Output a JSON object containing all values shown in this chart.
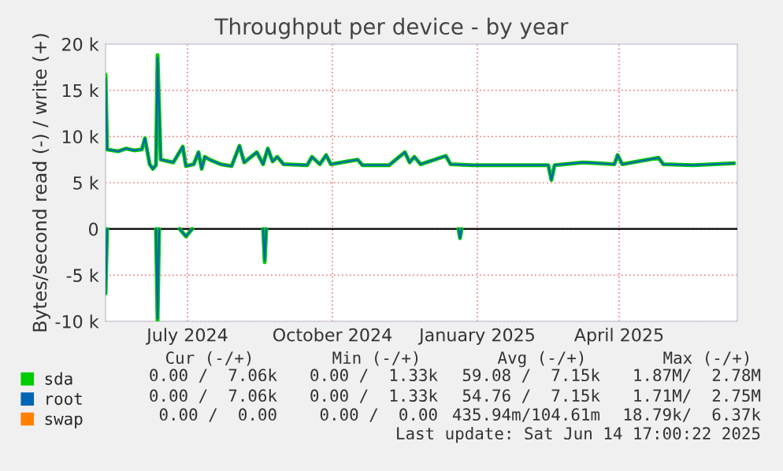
{
  "chart_data": {
    "type": "line",
    "title": "Throughput per device - by year",
    "ylabel": "Bytes/second read (-) / write (+)",
    "xlim": [
      "2024-05-10",
      "2025-06-15"
    ],
    "xticks": [
      {
        "value": "2024-07-01",
        "label": "July 2024"
      },
      {
        "value": "2024-10-01",
        "label": "October 2024"
      },
      {
        "value": "2025-01-01",
        "label": "January 2025"
      },
      {
        "value": "2025-04-01",
        "label": "April 2025"
      }
    ],
    "ylim": [
      -10000,
      20000
    ],
    "yticks": [
      {
        "value": -10000,
        "label": "-10 k"
      },
      {
        "value": -5000,
        "label": "-5 k"
      },
      {
        "value": 0,
        "label": "0"
      },
      {
        "value": 5000,
        "label": "5 k"
      },
      {
        "value": 10000,
        "label": "10 k"
      },
      {
        "value": 15000,
        "label": "15 k"
      },
      {
        "value": 20000,
        "label": "20 k"
      }
    ],
    "grid": true,
    "legend": "bottom left",
    "ref_lines": [
      {
        "axis": "y",
        "value": 0,
        "color": "#000000"
      }
    ],
    "series": [
      {
        "name": "sda",
        "color": "#00cc00",
        "x": [
          "2024-05-10",
          "2024-05-11",
          "2024-05-18",
          "2024-05-23",
          "2024-05-28",
          "2024-06-02",
          "2024-06-04",
          "2024-06-07",
          "2024-06-09",
          "2024-06-11",
          "2024-06-12",
          "2024-06-14",
          "2024-06-22",
          "2024-06-28",
          "2024-06-30",
          "2024-07-05",
          "2024-07-08",
          "2024-07-10",
          "2024-07-12",
          "2024-07-15",
          "2024-07-22",
          "2024-07-29",
          "2024-08-03",
          "2024-08-06",
          "2024-08-14",
          "2024-08-18",
          "2024-08-21",
          "2024-08-24",
          "2024-08-27",
          "2024-08-31",
          "2024-09-15",
          "2024-09-18",
          "2024-09-23",
          "2024-09-27",
          "2024-09-30",
          "2024-10-17",
          "2024-10-20",
          "2024-11-06",
          "2024-11-16",
          "2024-11-19",
          "2024-11-22",
          "2024-11-26",
          "2024-12-12",
          "2024-12-15",
          "2024-12-29",
          "2025-02-15",
          "2025-02-17",
          "2025-02-19",
          "2025-03-09",
          "2025-03-29",
          "2025-03-31",
          "2025-04-03",
          "2025-04-26",
          "2025-04-29",
          "2025-05-18",
          "2025-06-13"
        ],
        "values": [
          16700,
          8600,
          8400,
          8700,
          8500,
          8600,
          9800,
          7000,
          6500,
          6900,
          18800,
          7500,
          7200,
          8900,
          6800,
          7000,
          8300,
          6500,
          7800,
          7500,
          7000,
          6800,
          9000,
          7200,
          8300,
          7000,
          8700,
          7300,
          7800,
          7000,
          6900,
          7800,
          7000,
          8000,
          7000,
          7500,
          6900,
          6900,
          8300,
          7200,
          7800,
          7000,
          7900,
          7000,
          6900,
          6900,
          5300,
          6900,
          7200,
          7000,
          8000,
          7000,
          7700,
          7000,
          6900,
          7100
        ]
      },
      {
        "color": "#00cc00",
        "x": [
          "2024-05-10",
          "2024-05-11",
          "2024-05-20",
          "2024-06-11",
          "2024-06-12",
          "2024-06-13",
          "2024-06-20",
          "2024-06-26",
          "2024-06-30",
          "2024-07-04",
          "2024-07-20",
          "2024-08-18",
          "2024-08-19",
          "2024-08-20",
          "2024-09-20",
          "2024-12-20",
          "2024-12-21",
          "2024-12-22"
        ],
        "values": [
          -7000,
          0,
          null,
          0,
          -10000,
          0,
          null,
          0,
          -800,
          0,
          null,
          0,
          -3600,
          0,
          null,
          0,
          -1000,
          0
        ]
      },
      {
        "name": "root",
        "color": "#0066b3",
        "x": [
          "2024-05-10",
          "2024-05-11",
          "2024-05-18",
          "2024-05-23",
          "2024-05-28",
          "2024-06-02",
          "2024-06-04",
          "2024-06-07",
          "2024-06-09",
          "2024-06-11",
          "2024-06-12",
          "2024-06-14",
          "2024-06-22",
          "2024-06-28",
          "2024-06-30",
          "2024-07-05",
          "2024-07-08",
          "2024-07-10",
          "2024-07-12",
          "2024-07-15",
          "2024-07-22",
          "2024-07-29",
          "2024-08-03",
          "2024-08-06",
          "2024-08-14",
          "2024-08-18",
          "2024-08-21",
          "2024-08-24",
          "2024-08-27",
          "2024-08-31",
          "2024-09-15",
          "2024-09-18",
          "2024-09-23",
          "2024-09-27",
          "2024-09-30",
          "2024-10-17",
          "2024-10-20",
          "2024-11-06",
          "2024-11-16",
          "2024-11-19",
          "2024-11-22",
          "2024-11-26",
          "2024-12-12",
          "2024-12-15",
          "2024-12-29",
          "2025-02-15",
          "2025-02-17",
          "2025-02-19",
          "2025-03-09",
          "2025-03-29",
          "2025-03-31",
          "2025-04-03",
          "2025-04-26",
          "2025-04-29",
          "2025-05-18",
          "2025-06-13"
        ],
        "values": [
          16300,
          8600,
          8400,
          8700,
          8500,
          8600,
          9800,
          7000,
          6500,
          6900,
          18500,
          7500,
          7200,
          8900,
          6800,
          7000,
          8300,
          6500,
          7800,
          7500,
          7000,
          6800,
          9000,
          7200,
          8300,
          7000,
          8700,
          7300,
          7800,
          7000,
          6900,
          7800,
          7000,
          8000,
          7000,
          7500,
          6900,
          6900,
          8300,
          7200,
          7800,
          7000,
          7900,
          7000,
          6900,
          6900,
          5300,
          6900,
          7200,
          7000,
          8000,
          7000,
          7700,
          7000,
          6900,
          7100
        ]
      },
      {
        "color": "#0066b3",
        "x": [
          "2024-05-10",
          "2024-05-11",
          "2024-05-20",
          "2024-06-11",
          "2024-06-12",
          "2024-06-13",
          "2024-06-20",
          "2024-06-26",
          "2024-06-30",
          "2024-07-04",
          "2024-07-20",
          "2024-08-18",
          "2024-08-19",
          "2024-08-20",
          "2024-09-20",
          "2024-12-20",
          "2024-12-21",
          "2024-12-22"
        ],
        "values": [
          -7000,
          0,
          null,
          0,
          -9700,
          0,
          null,
          0,
          -800,
          0,
          null,
          0,
          -3400,
          0,
          null,
          0,
          -1000,
          0
        ]
      },
      {
        "name": "swap",
        "color": "#ff8000",
        "values": [
          null,
          null
        ]
      }
    ],
    "annotations": [
      "Cur (-/+)",
      "Min (-/+)",
      "Avg (-/+)",
      "Max (-/+)",
      "0.00 /  7.06k",
      "0.00 /  1.33k",
      "59.08 /  7.15k",
      "1.87M/  2.78M",
      "0.00 /  7.06k",
      "0.00 /  1.33k",
      "54.76 /  7.15k",
      "1.71M/  2.75M",
      "0.00 /  0.00",
      "0.00 /  0.00",
      "435.94m/104.61m",
      "18.79k/  6.37k",
      "Last update: Sat Jun 14 17:00:22 2025"
    ]
  }
}
